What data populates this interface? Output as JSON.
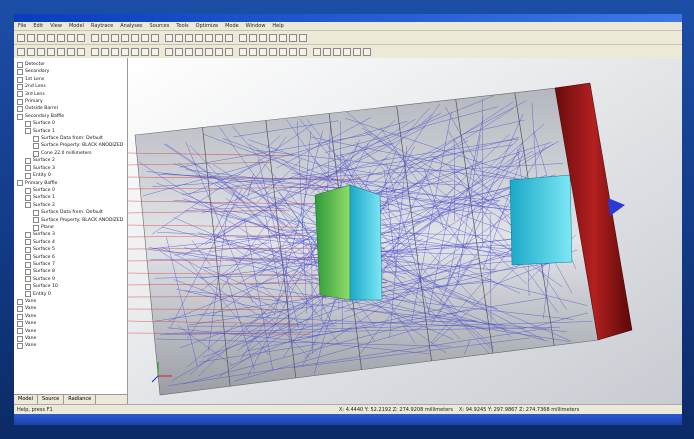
{
  "menu": [
    "File",
    "Edit",
    "View",
    "Model",
    "Raytrace",
    "Analyses",
    "Sources",
    "Tools",
    "Optimize",
    "Mode",
    "Window",
    "Help"
  ],
  "tree": [
    {
      "label": "Detector"
    },
    {
      "label": "Secondary"
    },
    {
      "label": "1st Lens"
    },
    {
      "label": "2nd Lens"
    },
    {
      "label": "3rd Lens"
    },
    {
      "label": "Primary"
    },
    {
      "label": "Outside Barrel"
    },
    {
      "label": "Secondary Baffle",
      "children": [
        {
          "label": "Surface 0"
        },
        {
          "label": "Surface 1",
          "children": [
            {
              "label": "Surface Data from: Default"
            },
            {
              "label": "Surface Property: BLACK ANODIZED"
            },
            {
              "label": "Cone 22.0 millimeters"
            }
          ]
        },
        {
          "label": "Surface 2"
        },
        {
          "label": "Surface 3"
        },
        {
          "label": "Entity 0"
        }
      ]
    },
    {
      "label": "Primary Baffle",
      "children": [
        {
          "label": "Surface 0"
        },
        {
          "label": "Surface 1"
        },
        {
          "label": "Surface 2",
          "children": [
            {
              "label": "Surface Data from: Default"
            },
            {
              "label": "Surface Property: BLACK ANODIZED"
            },
            {
              "label": "Plane"
            }
          ]
        },
        {
          "label": "Surface 3"
        },
        {
          "label": "Surface 4"
        },
        {
          "label": "Surface 5"
        },
        {
          "label": "Surface 6"
        },
        {
          "label": "Surface 7"
        },
        {
          "label": "Surface 8"
        },
        {
          "label": "Surface 9"
        },
        {
          "label": "Surface 10"
        },
        {
          "label": "Entity 0"
        }
      ]
    },
    {
      "label": "Vane"
    },
    {
      "label": "Vane"
    },
    {
      "label": "Vane"
    },
    {
      "label": "Vane"
    },
    {
      "label": "Vane"
    },
    {
      "label": "Vane"
    },
    {
      "label": "Vane"
    }
  ],
  "tabs": [
    "Model",
    "Source",
    "Radiance"
  ],
  "status": {
    "help": "Help, press F1",
    "coord_1": "X: 4.4440 Y: 52.2192 Z: 274.9208 millimeters",
    "coord_2": "X: 94.9245 Y: 297.9867 Z: 274.7368 millimeters"
  }
}
